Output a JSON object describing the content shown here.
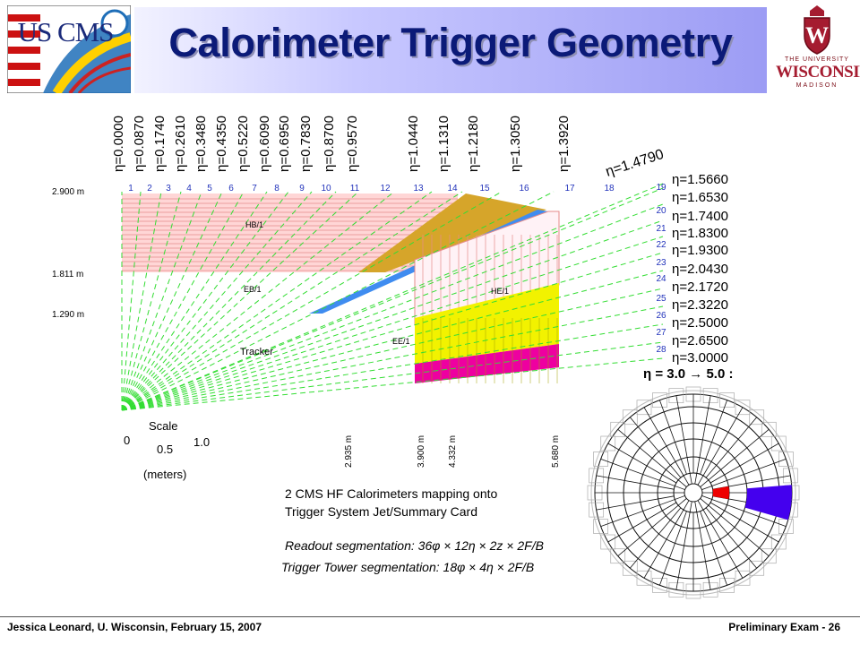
{
  "slide": {
    "title": "Calorimeter Trigger Geometry",
    "footer_left": "Jessica Leonard, U. Wisconsin, February 15, 2007",
    "footer_right": "Preliminary Exam -  26"
  },
  "logos": {
    "uscms": {
      "text": "US CMS"
    },
    "wisconsin": {
      "line1": "THE UNIVERSITY",
      "line2": "WISCONSIN",
      "line3": "MADISON",
      "shield_letter": "W"
    }
  },
  "eta_top": [
    "η=0.0000",
    "η=0.0870",
    "η=0.1740",
    "η=0.2610",
    "η=0.3480",
    "η=0.4350",
    "η=0.5220",
    "η=0.6090",
    "η=0.6950",
    "η=0.7830",
    "η=0.8700",
    "η=0.9570",
    "η=1.0440",
    "η=1.1310",
    "η=1.2180",
    "η=1.3050",
    "η=1.3920"
  ],
  "eta_diagonal": "η=1.4790",
  "eta_right": [
    "η=1.5660",
    "η=1.6530",
    "η=1.7400",
    "η=1.8300",
    "η=1.9300",
    "η=2.0430",
    "η=2.1720",
    "η=2.3220",
    "η=2.5000",
    "η=2.6500",
    "η=3.0000"
  ],
  "tower_top": [
    "1",
    "2",
    "3",
    "4",
    "5",
    "6",
    "7",
    "8",
    "9",
    "10",
    "11",
    "12",
    "13",
    "14",
    "15",
    "16",
    "17",
    "18"
  ],
  "tower_right": [
    "19",
    "20",
    "21",
    "22",
    "23",
    "24",
    "25",
    "26",
    "27",
    "28"
  ],
  "radii": [
    "2.900 m",
    "1.811 m",
    "1.290 m"
  ],
  "z_distances": [
    "2.935 m",
    "3.900 m",
    "4.332 m",
    "5.680 m"
  ],
  "regions": {
    "hb": "HB/1",
    "eb": "EB/1",
    "he": "HE/1",
    "ee": "EE/1",
    "tracker": "Tracker"
  },
  "scale": {
    "label": "Scale",
    "t0": "0",
    "t05": "0.5",
    "t1": "1.0",
    "unit": "(meters)"
  },
  "hf": {
    "heading": "η = 3.0 → 5.0 :",
    "caption1": "2 CMS HF Calorimeters mapping onto",
    "caption2": "Trigger System Jet/Summary Card",
    "readout": "Readout segmentation: 36φ × 12η × 2z × 2F/B",
    "trigger": "Trigger Tower segmentation: 18φ × 4η × 2F/B"
  },
  "colors": {
    "hb_fill": "#ffd6d6",
    "hb_lines": "#e58a8a",
    "eb": "#3f8cf0",
    "ee_yellow": "#f2f200",
    "ee_magenta": "#ee00a0",
    "endcap_gold": "#d6a52a",
    "eta_lines": "#33dd33",
    "hf_red": "#ee0000",
    "hf_blue": "#4400ee",
    "tower_num": "#2233bb",
    "title_text": "#0b1a78"
  }
}
